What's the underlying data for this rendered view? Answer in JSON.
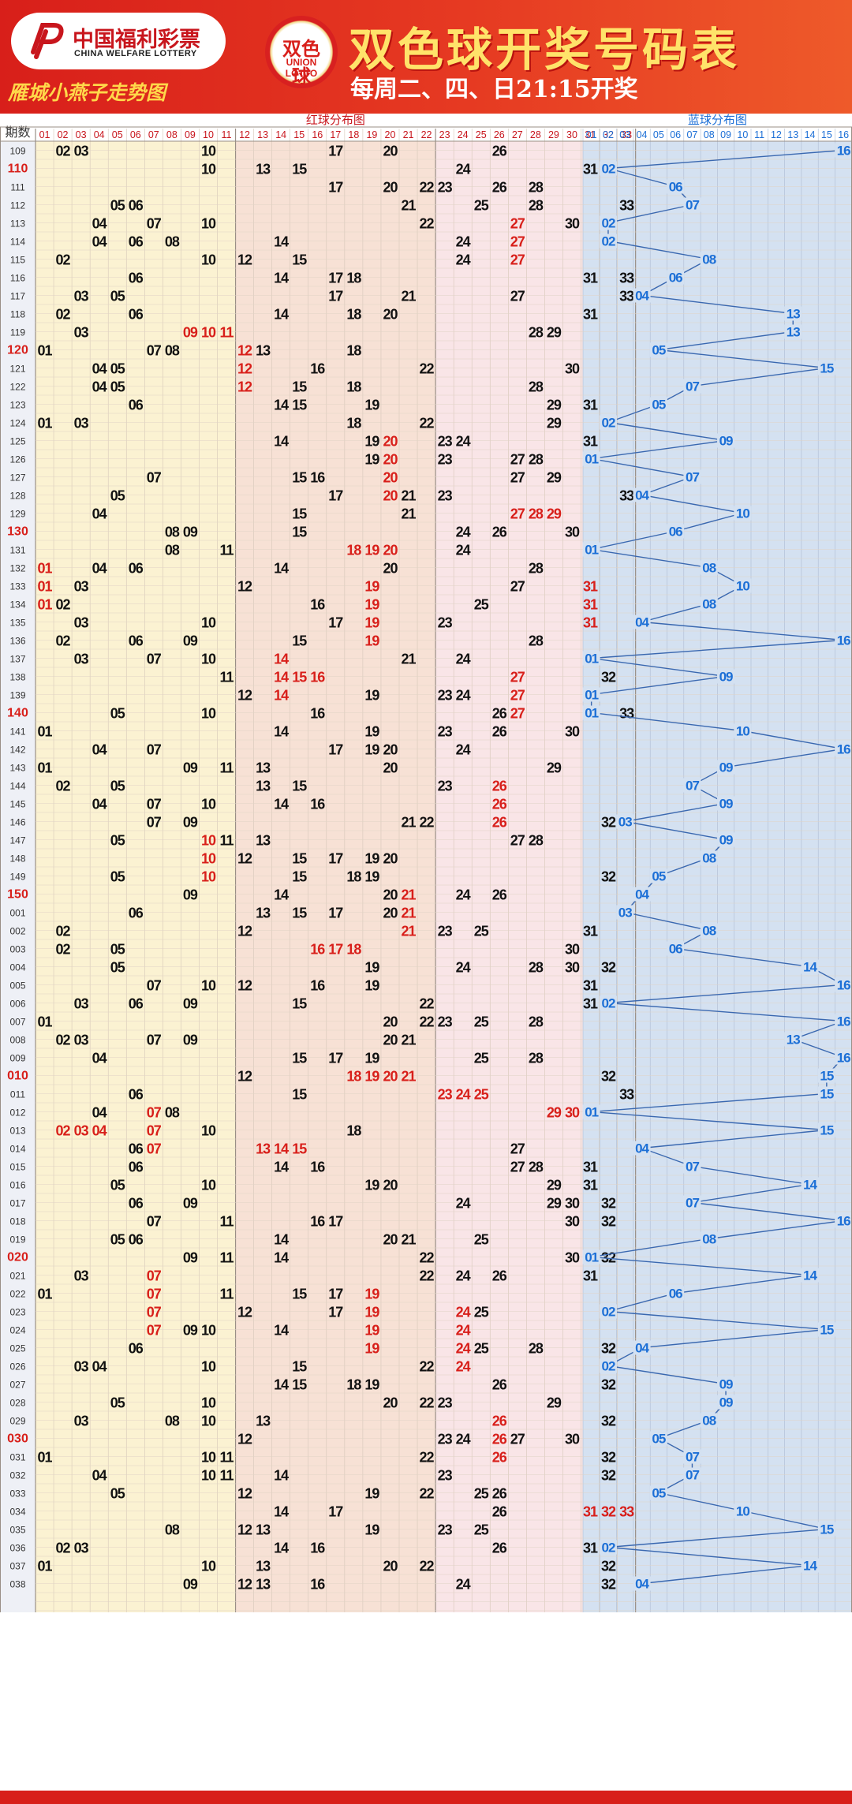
{
  "header": {
    "logo_cn": "中国福利彩票",
    "logo_en": "CHINA WELFARE LOTTERY",
    "subtitle": "雁城小燕子走势图",
    "badge_top": "双色球",
    "badge_bottom": "UNION LOTTO",
    "title": "双色球开奖号码表",
    "schedule": "每周二、四、日21:15开奖"
  },
  "colors": {
    "red_ball": "#d81f1a",
    "blue_ball": "#1c6fd6",
    "zone1_bg": "#fbf2d2",
    "zone2_bg": "#f7e1d5",
    "zone3_bg": "#f9e5e7",
    "blue_bg": "#d4e1f1",
    "header_bg": "#e0281e"
  },
  "chart_data": {
    "type": "table",
    "period_header": "期数",
    "red_zone_label": "红球分布图",
    "blue_zone_label": "蓝球分布图",
    "red_numbers": [
      "01",
      "02",
      "03",
      "04",
      "05",
      "06",
      "07",
      "08",
      "09",
      "10",
      "11",
      "12",
      "13",
      "14",
      "15",
      "16",
      "17",
      "18",
      "19",
      "20",
      "21",
      "22",
      "23",
      "24",
      "25",
      "26",
      "27",
      "28",
      "29",
      "30",
      "31",
      "32",
      "33"
    ],
    "blue_numbers": [
      "01",
      "02",
      "03",
      "04",
      "05",
      "06",
      "07",
      "08",
      "09",
      "10",
      "11",
      "12",
      "13",
      "14",
      "15",
      "16"
    ],
    "highlight_periods": [
      "110",
      "120",
      "130",
      "140",
      "150",
      "010",
      "020",
      "030"
    ],
    "rows": [
      {
        "p": "109",
        "r": [
          2,
          3,
          10,
          17,
          20,
          26
        ],
        "h": [],
        "b": 16
      },
      {
        "p": "110",
        "r": [
          10,
          13,
          15,
          24,
          31,
          32
        ],
        "h": [],
        "b": 2
      },
      {
        "p": "111",
        "r": [
          17,
          20,
          22,
          23,
          26,
          28
        ],
        "h": [],
        "b": 6
      },
      {
        "p": "112",
        "r": [
          5,
          6,
          21,
          25,
          28,
          33
        ],
        "h": [],
        "b": 7
      },
      {
        "p": "113",
        "r": [
          4,
          7,
          10,
          22,
          27,
          30
        ],
        "h": [
          27
        ],
        "b": 2
      },
      {
        "p": "114",
        "r": [
          4,
          6,
          8,
          14,
          24,
          27
        ],
        "h": [
          27
        ],
        "b": 2
      },
      {
        "p": "115",
        "r": [
          2,
          10,
          12,
          15,
          24,
          27
        ],
        "h": [
          27
        ],
        "b": 8
      },
      {
        "p": "116",
        "r": [
          6,
          14,
          17,
          18,
          31,
          33
        ],
        "h": [],
        "b": 6
      },
      {
        "p": "117",
        "r": [
          3,
          5,
          17,
          21,
          27,
          33
        ],
        "h": [],
        "b": 4
      },
      {
        "p": "118",
        "r": [
          2,
          6,
          14,
          18,
          20,
          31
        ],
        "h": [],
        "b": 13
      },
      {
        "p": "119",
        "r": [
          3,
          9,
          10,
          11,
          28,
          29
        ],
        "h": [
          9,
          10,
          11
        ],
        "b": 13
      },
      {
        "p": "120",
        "r": [
          1,
          7,
          8,
          12,
          13,
          18
        ],
        "h": [
          12
        ],
        "b": 5
      },
      {
        "p": "121",
        "r": [
          4,
          5,
          12,
          16,
          22,
          30
        ],
        "h": [
          12
        ],
        "b": 15
      },
      {
        "p": "122",
        "r": [
          4,
          5,
          12,
          15,
          18,
          28
        ],
        "h": [
          12
        ],
        "b": 7
      },
      {
        "p": "123",
        "r": [
          6,
          14,
          15,
          19,
          29,
          31
        ],
        "h": [],
        "b": 5
      },
      {
        "p": "124",
        "r": [
          1,
          3,
          18,
          22,
          29,
          32
        ],
        "h": [],
        "b": 2
      },
      {
        "p": "125",
        "r": [
          14,
          19,
          20,
          23,
          24,
          31
        ],
        "h": [
          20
        ],
        "b": 9
      },
      {
        "p": "126",
        "r": [
          19,
          20,
          23,
          27,
          28,
          31
        ],
        "h": [
          20
        ],
        "b": 1
      },
      {
        "p": "127",
        "r": [
          7,
          15,
          16,
          20,
          27,
          29
        ],
        "h": [
          20
        ],
        "b": 7
      },
      {
        "p": "128",
        "r": [
          5,
          17,
          20,
          21,
          23,
          33
        ],
        "h": [
          20
        ],
        "b": 4
      },
      {
        "p": "129",
        "r": [
          4,
          15,
          21,
          27,
          28,
          29
        ],
        "h": [
          27,
          28,
          29
        ],
        "b": 10
      },
      {
        "p": "130",
        "r": [
          8,
          9,
          15,
          24,
          26,
          30
        ],
        "h": [],
        "b": 6
      },
      {
        "p": "131",
        "r": [
          8,
          11,
          18,
          19,
          20,
          24
        ],
        "h": [
          18,
          19,
          20
        ],
        "b": 1
      },
      {
        "p": "132",
        "r": [
          1,
          4,
          6,
          14,
          20,
          28
        ],
        "h": [
          1
        ],
        "b": 8
      },
      {
        "p": "133",
        "r": [
          1,
          3,
          12,
          19,
          27,
          31
        ],
        "h": [
          1,
          19,
          31
        ],
        "b": 10
      },
      {
        "p": "134",
        "r": [
          1,
          2,
          16,
          19,
          25,
          31
        ],
        "h": [
          1,
          19,
          31
        ],
        "b": 8
      },
      {
        "p": "135",
        "r": [
          3,
          10,
          17,
          19,
          23,
          31
        ],
        "h": [
          19,
          31
        ],
        "b": 4
      },
      {
        "p": "136",
        "r": [
          2,
          6,
          9,
          15,
          19,
          28
        ],
        "h": [
          19
        ],
        "b": 16
      },
      {
        "p": "137",
        "r": [
          3,
          7,
          10,
          14,
          21,
          24
        ],
        "h": [
          14
        ],
        "b": 1
      },
      {
        "p": "138",
        "r": [
          11,
          14,
          15,
          16,
          27,
          32
        ],
        "h": [
          14,
          15,
          16,
          27
        ],
        "b": 9
      },
      {
        "p": "139",
        "r": [
          12,
          14,
          19,
          23,
          24,
          27
        ],
        "h": [
          14,
          27
        ],
        "b": 1
      },
      {
        "p": "140",
        "r": [
          5,
          10,
          16,
          26,
          27,
          33
        ],
        "h": [
          27
        ],
        "b": 1
      },
      {
        "p": "141",
        "r": [
          1,
          14,
          19,
          23,
          26,
          30
        ],
        "h": [],
        "b": 10
      },
      {
        "p": "142",
        "r": [
          4,
          7,
          17,
          19,
          20,
          24
        ],
        "h": [],
        "b": 16
      },
      {
        "p": "143",
        "r": [
          1,
          9,
          11,
          13,
          20,
          29
        ],
        "h": [],
        "b": 9
      },
      {
        "p": "144",
        "r": [
          2,
          5,
          13,
          15,
          23,
          26
        ],
        "h": [
          26
        ],
        "b": 7
      },
      {
        "p": "145",
        "r": [
          4,
          7,
          10,
          14,
          16,
          26
        ],
        "h": [
          26
        ],
        "b": 9
      },
      {
        "p": "146",
        "r": [
          7,
          9,
          21,
          22,
          26,
          32
        ],
        "h": [
          26
        ],
        "b": 3
      },
      {
        "p": "147",
        "r": [
          5,
          10,
          11,
          13,
          27,
          28
        ],
        "h": [
          10
        ],
        "b": 9
      },
      {
        "p": "148",
        "r": [
          10,
          12,
          15,
          17,
          19,
          20
        ],
        "h": [
          10
        ],
        "b": 8
      },
      {
        "p": "149",
        "r": [
          5,
          10,
          15,
          18,
          19,
          32
        ],
        "h": [
          10
        ],
        "b": 5
      },
      {
        "p": "150",
        "r": [
          9,
          14,
          20,
          21,
          24,
          26
        ],
        "h": [
          21
        ],
        "b": 4
      },
      {
        "p": "001",
        "r": [
          6,
          13,
          15,
          17,
          20,
          21
        ],
        "h": [
          21
        ],
        "b": 3
      },
      {
        "p": "002",
        "r": [
          2,
          12,
          21,
          23,
          25,
          31
        ],
        "h": [
          21
        ],
        "b": 8
      },
      {
        "p": "003",
        "r": [
          2,
          5,
          16,
          17,
          18,
          30
        ],
        "h": [
          16,
          17,
          18
        ],
        "b": 6
      },
      {
        "p": "004",
        "r": [
          5,
          19,
          24,
          28,
          30,
          32
        ],
        "h": [],
        "b": 14
      },
      {
        "p": "005",
        "r": [
          7,
          10,
          12,
          16,
          19,
          31
        ],
        "h": [],
        "b": 16
      },
      {
        "p": "006",
        "r": [
          3,
          6,
          9,
          15,
          22,
          31
        ],
        "h": [],
        "b": 2
      },
      {
        "p": "007",
        "r": [
          1,
          20,
          22,
          23,
          25,
          28
        ],
        "h": [],
        "b": 16
      },
      {
        "p": "008",
        "r": [
          2,
          3,
          7,
          9,
          20,
          21
        ],
        "h": [],
        "b": 13
      },
      {
        "p": "009",
        "r": [
          4,
          15,
          17,
          19,
          25,
          28
        ],
        "h": [],
        "b": 16
      },
      {
        "p": "010",
        "r": [
          12,
          18,
          19,
          20,
          21,
          32
        ],
        "h": [
          18,
          19,
          20,
          21
        ],
        "b": 15
      },
      {
        "p": "011",
        "r": [
          6,
          15,
          23,
          24,
          25,
          33
        ],
        "h": [
          23,
          24,
          25
        ],
        "b": 15
      },
      {
        "p": "012",
        "r": [
          4,
          7,
          8,
          29,
          30,
          31
        ],
        "h": [
          7,
          29,
          30,
          31
        ],
        "b": 1
      },
      {
        "p": "013",
        "r": [
          2,
          3,
          4,
          7,
          10,
          18
        ],
        "h": [
          2,
          3,
          4,
          7
        ],
        "b": 15
      },
      {
        "p": "014",
        "r": [
          6,
          7,
          13,
          14,
          15,
          27
        ],
        "h": [
          7,
          13,
          14,
          15
        ],
        "b": 4
      },
      {
        "p": "015",
        "r": [
          6,
          14,
          16,
          27,
          28,
          31
        ],
        "h": [],
        "b": 7
      },
      {
        "p": "016",
        "r": [
          5,
          10,
          19,
          20,
          29,
          31
        ],
        "h": [],
        "b": 14
      },
      {
        "p": "017",
        "r": [
          6,
          9,
          24,
          29,
          30,
          32
        ],
        "h": [],
        "b": 7
      },
      {
        "p": "018",
        "r": [
          7,
          11,
          16,
          17,
          30,
          32
        ],
        "h": [],
        "b": 16
      },
      {
        "p": "019",
        "r": [
          5,
          6,
          14,
          20,
          21,
          25
        ],
        "h": [],
        "b": 8
      },
      {
        "p": "020",
        "r": [
          9,
          11,
          14,
          22,
          30,
          32
        ],
        "h": [],
        "b": 1
      },
      {
        "p": "021",
        "r": [
          3,
          7,
          22,
          24,
          26,
          31
        ],
        "h": [
          7
        ],
        "b": 14
      },
      {
        "p": "022",
        "r": [
          1,
          7,
          11,
          15,
          17,
          19
        ],
        "h": [
          7,
          19
        ],
        "b": 6
      },
      {
        "p": "023",
        "r": [
          7,
          12,
          17,
          19,
          24,
          25
        ],
        "h": [
          7,
          19,
          24
        ],
        "b": 2
      },
      {
        "p": "024",
        "r": [
          7,
          9,
          10,
          14,
          19,
          24
        ],
        "h": [
          7,
          19,
          24
        ],
        "b": 15
      },
      {
        "p": "025",
        "r": [
          6,
          19,
          24,
          25,
          28,
          32
        ],
        "h": [
          19,
          24
        ],
        "b": 4
      },
      {
        "p": "026",
        "r": [
          3,
          4,
          10,
          15,
          22,
          24
        ],
        "h": [
          24
        ],
        "b": 2
      },
      {
        "p": "027",
        "r": [
          14,
          15,
          18,
          19,
          26,
          32
        ],
        "h": [],
        "b": 9
      },
      {
        "p": "028",
        "r": [
          5,
          10,
          20,
          22,
          23,
          29
        ],
        "h": [],
        "b": 9
      },
      {
        "p": "029",
        "r": [
          3,
          8,
          10,
          13,
          26,
          32
        ],
        "h": [
          26
        ],
        "b": 8
      },
      {
        "p": "030",
        "r": [
          12,
          23,
          24,
          26,
          27,
          30
        ],
        "h": [
          26
        ],
        "b": 5
      },
      {
        "p": "031",
        "r": [
          1,
          10,
          11,
          22,
          26,
          32
        ],
        "h": [
          26
        ],
        "b": 7
      },
      {
        "p": "032",
        "r": [
          4,
          10,
          11,
          14,
          23,
          32
        ],
        "h": [],
        "b": 7
      },
      {
        "p": "033",
        "r": [
          5,
          12,
          19,
          22,
          25,
          26
        ],
        "h": [],
        "b": 5
      },
      {
        "p": "034",
        "r": [
          14,
          17,
          26,
          31,
          32,
          33
        ],
        "h": [
          31,
          32,
          33
        ],
        "b": 10
      },
      {
        "p": "035",
        "r": [
          8,
          12,
          13,
          19,
          23,
          25
        ],
        "h": [],
        "b": 15
      },
      {
        "p": "036",
        "r": [
          2,
          3,
          14,
          16,
          26,
          31
        ],
        "h": [],
        "b": 2
      },
      {
        "p": "037",
        "r": [
          1,
          10,
          13,
          20,
          22,
          32
        ],
        "h": [],
        "b": 14
      },
      {
        "p": "038",
        "r": [
          9,
          12,
          13,
          16,
          24,
          32
        ],
        "h": [],
        "b": 4
      }
    ]
  }
}
